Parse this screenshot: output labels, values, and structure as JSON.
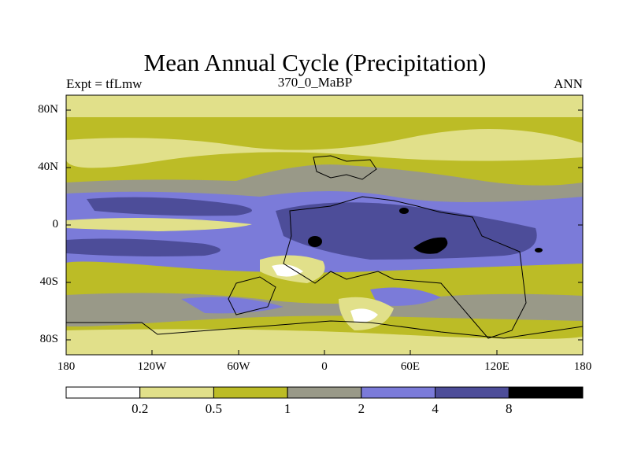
{
  "title": "Mean Annual Cycle (Precipitation)",
  "left_label": "Expt = tfLmw",
  "center_label": "370_0_MaBP",
  "right_label": "ANN",
  "y_ticks": [
    "80N",
    "40N",
    "0",
    "40S",
    "80S"
  ],
  "x_ticks": [
    "180",
    "120W",
    "60W",
    "0",
    "60E",
    "120E",
    "180"
  ],
  "colorbar": {
    "colors": [
      "#ffffff",
      "#e1e08a",
      "#bcbc26",
      "#999988",
      "#7b7bd9",
      "#4d4d99",
      "#000000"
    ],
    "labels": [
      "0.2",
      "0.5",
      "1",
      "2",
      "4",
      "8"
    ]
  },
  "chart_data": {
    "type": "heatmap",
    "variable": "Precipitation",
    "title": "Mean Annual Cycle (Precipitation)",
    "x_range": [
      -180,
      180
    ],
    "y_range": [
      -90,
      90
    ],
    "levels": [
      0.2,
      0.5,
      1,
      2,
      4,
      8
    ]
  }
}
